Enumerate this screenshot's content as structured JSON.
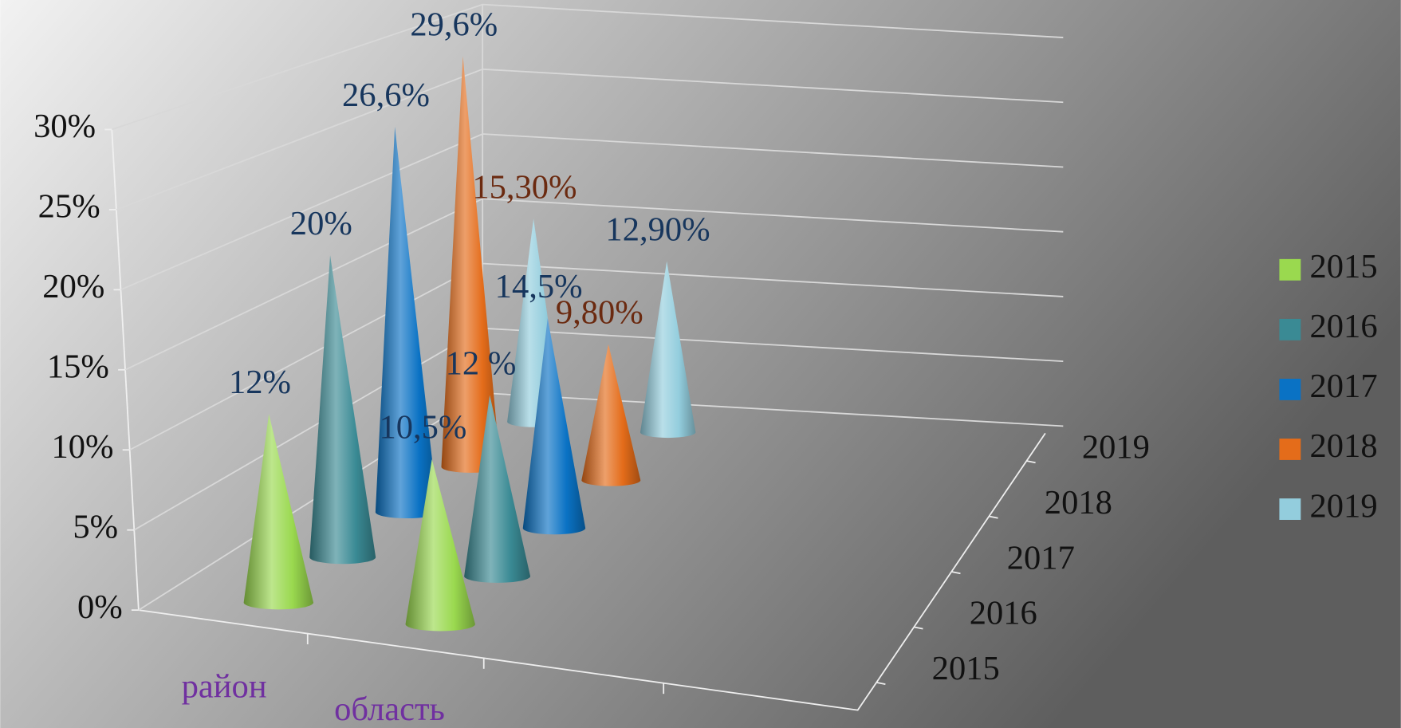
{
  "chart_data": {
    "type": "cone",
    "categories": [
      "район",
      "область"
    ],
    "category_color": "#7030a0",
    "series": [
      {
        "name": "2015",
        "color": "#9ad94f",
        "values": [
          12,
          10.5
        ],
        "value_labels": [
          "12%",
          "10,5%"
        ],
        "label_colors": [
          "#17365d",
          "#17365d"
        ]
      },
      {
        "name": "2016",
        "color": "#3a8a94",
        "values": [
          20,
          12
        ],
        "value_labels": [
          "20%",
          "12 %"
        ],
        "label_colors": [
          "#17365d",
          "#17365d"
        ]
      },
      {
        "name": "2017",
        "color": "#0a72c4",
        "values": [
          26.6,
          14.5
        ],
        "value_labels": [
          "26,6%",
          "14,5%"
        ],
        "label_colors": [
          "#17365d",
          "#17365d"
        ]
      },
      {
        "name": "2018",
        "color": "#e46c1a",
        "values": [
          29.6,
          9.8
        ],
        "value_labels": [
          "29,6%",
          "9,80%"
        ],
        "label_colors": [
          "#17365d",
          "#6b2a10"
        ]
      },
      {
        "name": "2019",
        "color": "#93cddd",
        "values": [
          15.3,
          12.9
        ],
        "value_labels": [
          "15,30%",
          "12,90%"
        ],
        "label_colors": [
          "#6b2a10",
          "#17365d"
        ]
      }
    ],
    "ylim": [
      0,
      30
    ],
    "yticks": [
      {
        "value": 0,
        "label": "0%"
      },
      {
        "value": 5,
        "label": "5%"
      },
      {
        "value": 10,
        "label": "10%"
      },
      {
        "value": 15,
        "label": "15%"
      },
      {
        "value": 20,
        "label": "20%"
      },
      {
        "value": 25,
        "label": "25%"
      },
      {
        "value": 30,
        "label": "30%"
      }
    ],
    "grid": true,
    "legend": "right"
  }
}
